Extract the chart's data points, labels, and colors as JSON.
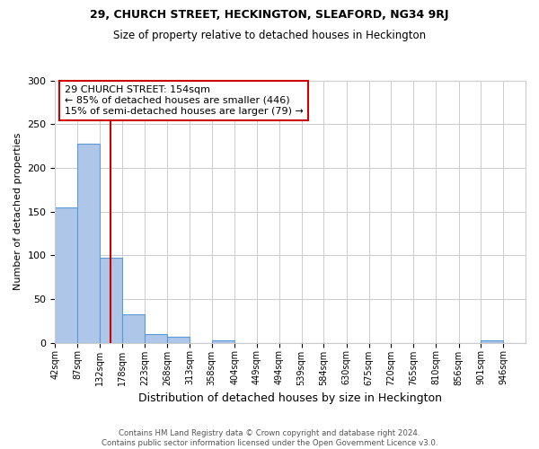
{
  "title1": "29, CHURCH STREET, HECKINGTON, SLEAFORD, NG34 9RJ",
  "title2": "Size of property relative to detached houses in Heckington",
  "xlabel": "Distribution of detached houses by size in Heckington",
  "ylabel": "Number of detached properties",
  "footnote": "Contains HM Land Registry data © Crown copyright and database right 2024.\nContains public sector information licensed under the Open Government Licence v3.0.",
  "bin_labels": [
    "42sqm",
    "87sqm",
    "132sqm",
    "178sqm",
    "223sqm",
    "268sqm",
    "313sqm",
    "358sqm",
    "404sqm",
    "449sqm",
    "494sqm",
    "539sqm",
    "584sqm",
    "630sqm",
    "675sqm",
    "720sqm",
    "765sqm",
    "810sqm",
    "856sqm",
    "901sqm",
    "946sqm"
  ],
  "bar_heights": [
    155,
    228,
    97,
    33,
    10,
    7,
    0,
    3,
    0,
    0,
    0,
    0,
    0,
    0,
    0,
    0,
    0,
    0,
    0,
    3,
    0
  ],
  "bar_color": "#aec6e8",
  "bar_edge_color": "#5b9bd5",
  "bin_positions": [
    42,
    87,
    132,
    178,
    223,
    268,
    313,
    358,
    404,
    449,
    494,
    539,
    584,
    630,
    675,
    720,
    765,
    810,
    856,
    901,
    946
  ],
  "bin_width": 45,
  "vline_x": 154,
  "vline_color": "#cc0000",
  "annotation_text": "29 CHURCH STREET: 154sqm\n← 85% of detached houses are smaller (446)\n15% of semi-detached houses are larger (79) →",
  "annotation_box_color": "#ffffff",
  "annotation_box_edge": "#cc0000",
  "ylim": [
    0,
    300
  ],
  "yticks": [
    0,
    50,
    100,
    150,
    200,
    250,
    300
  ],
  "xlim_left": 42,
  "xlim_right": 991,
  "background_color": "#ffffff",
  "grid_color": "#cccccc"
}
